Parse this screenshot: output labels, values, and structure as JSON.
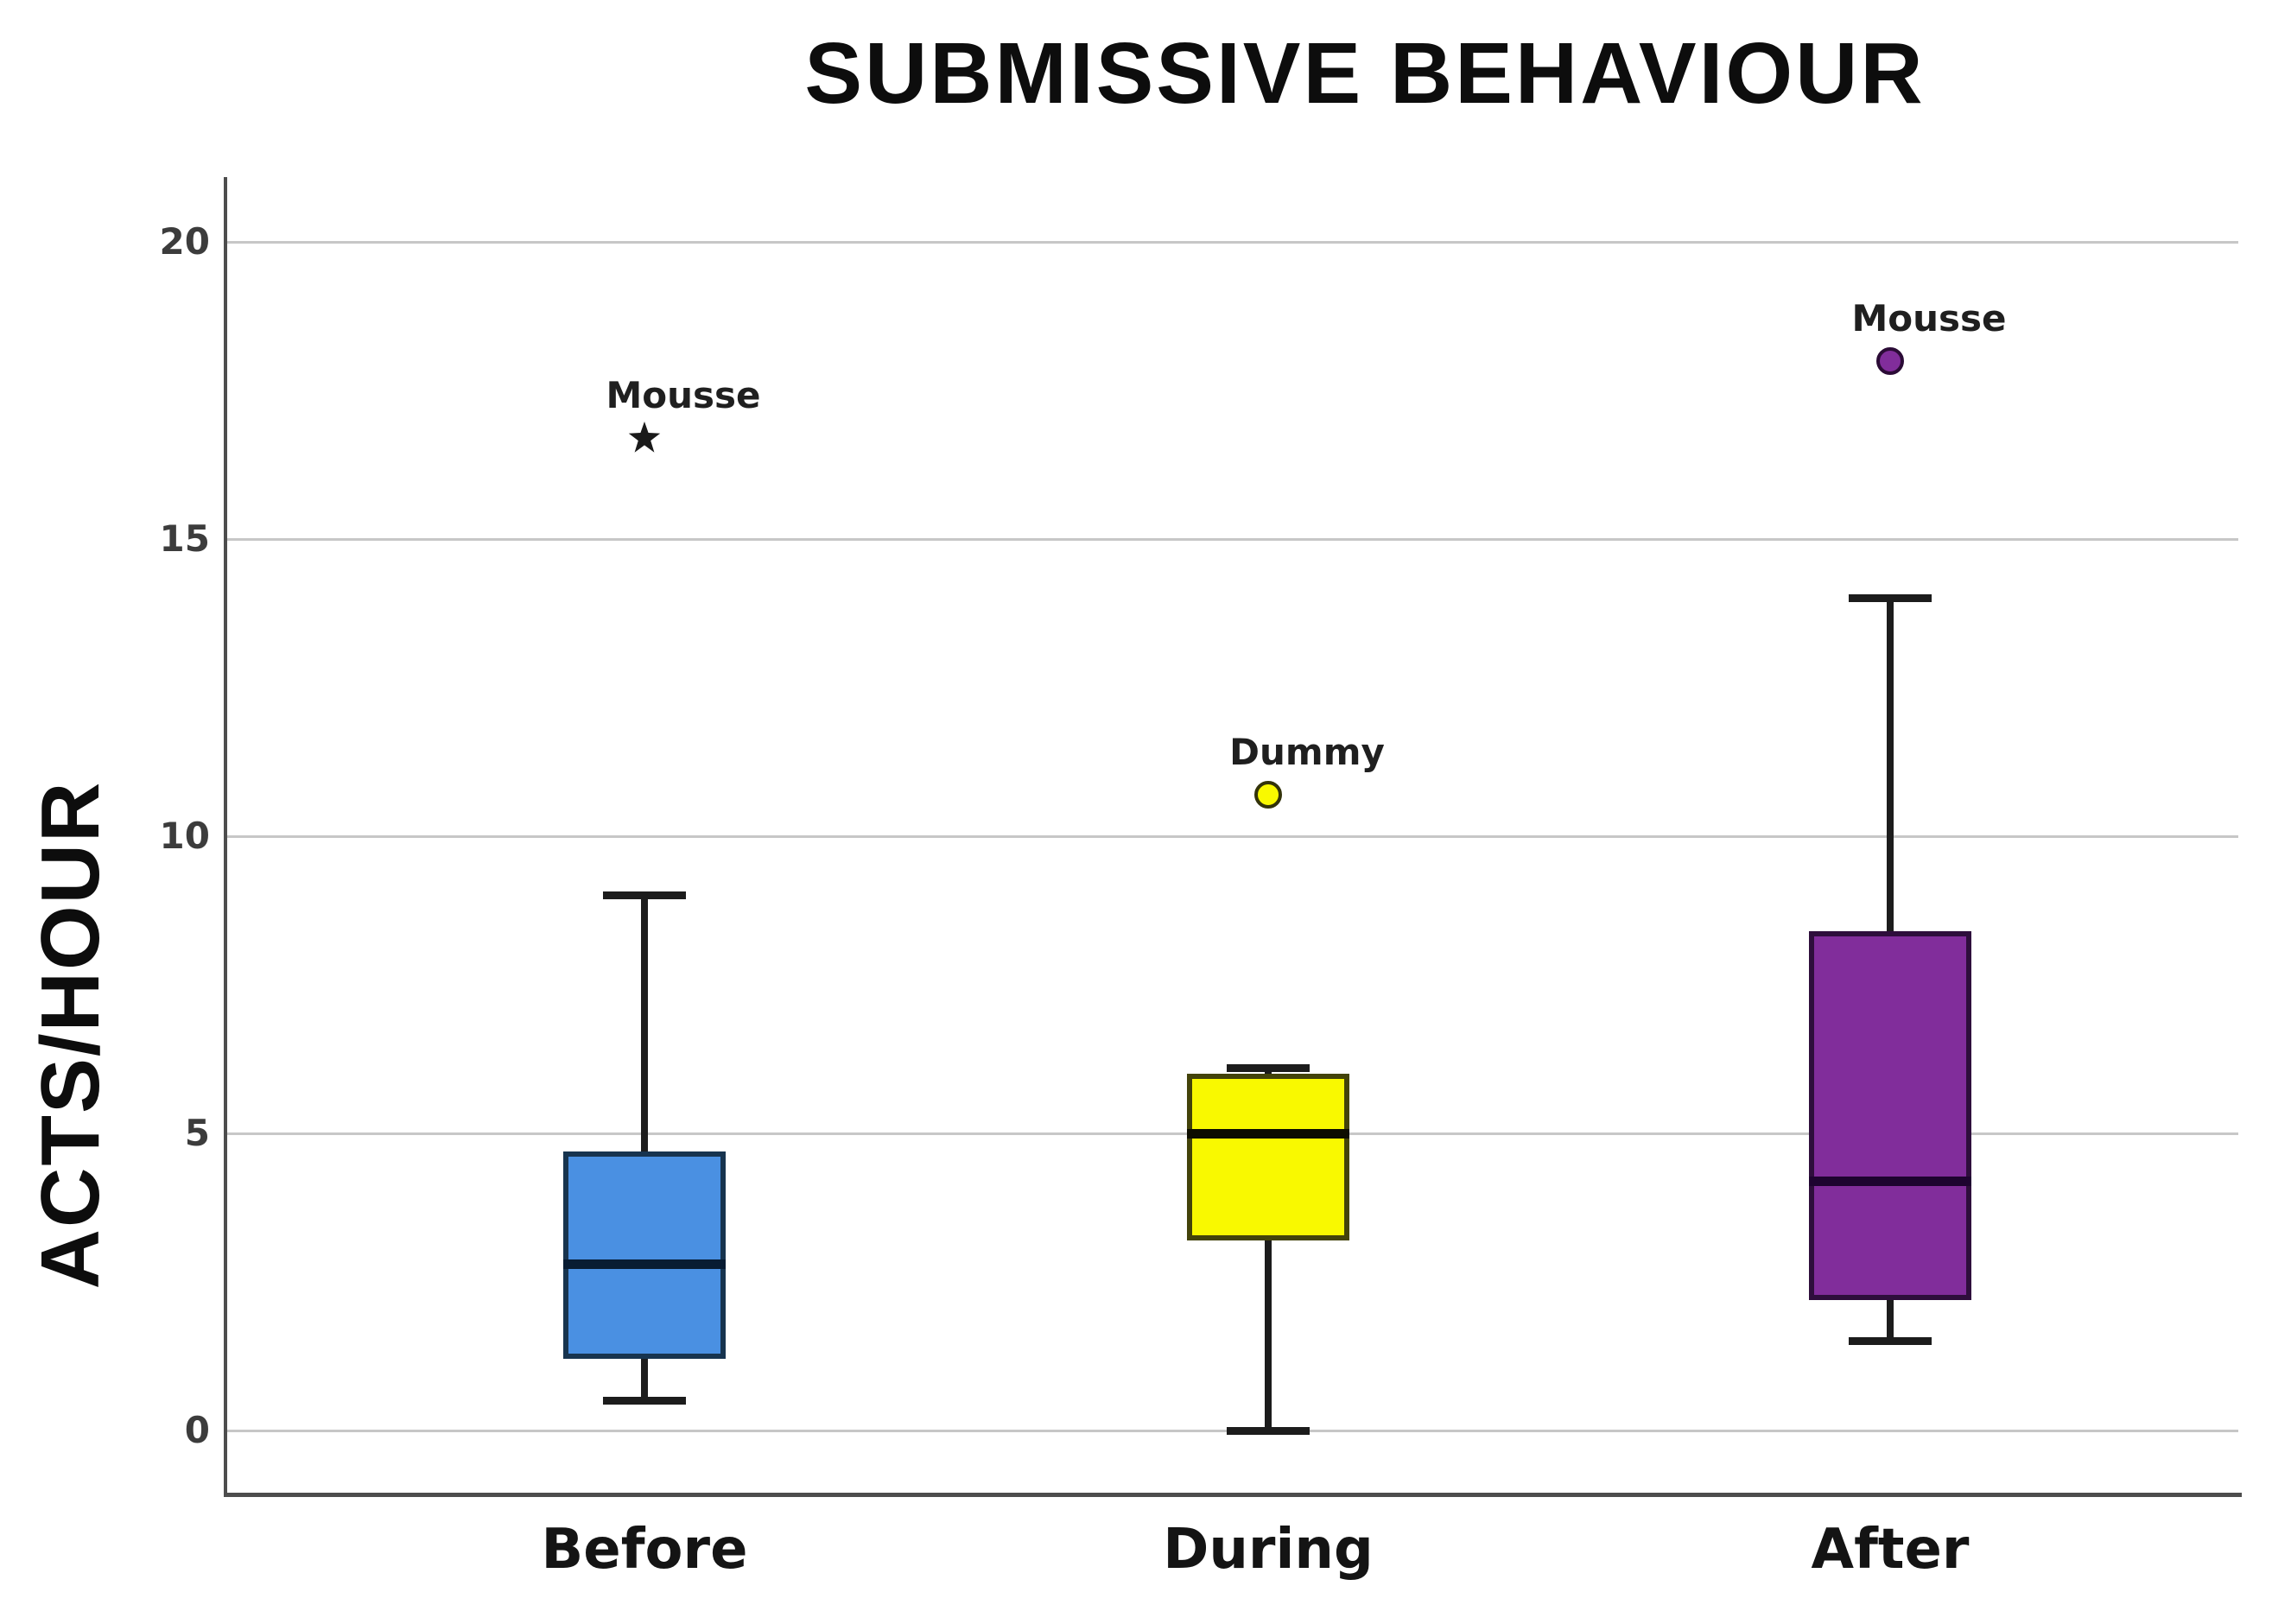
{
  "chart_data": {
    "type": "boxplot",
    "title": "SUBMISSIVE BEHAVIOUR",
    "ylabel": "ACTS/HOUR",
    "xlabel": "",
    "categories": [
      "Before",
      "During",
      "After"
    ],
    "yticks": [
      0,
      5,
      10,
      15,
      20
    ],
    "ylim": [
      -1.1,
      21.0
    ],
    "grid": "horizontal-gridlines",
    "legend": "none",
    "boxes": [
      {
        "category": "Before",
        "whisker_low": 0.5,
        "q1": 1.2,
        "median": 2.8,
        "q3": 4.7,
        "whisker_high": 9.0,
        "fill": "#4A90E2",
        "border": "#17344F",
        "median_color": "#081C33",
        "outliers": [
          {
            "label": "Mousse",
            "value": 16.7,
            "marker": "star",
            "fill": "#1A1A1A",
            "outline": "#1A1A1A"
          }
        ]
      },
      {
        "category": "During",
        "whisker_low": 0.0,
        "q1": 3.2,
        "median": 5.0,
        "q3": 6.0,
        "whisker_high": 6.1,
        "fill": "#F9F900",
        "border": "#43430A",
        "median_color": "#0D0D00",
        "outliers": [
          {
            "label": "Dummy",
            "value": 10.7,
            "marker": "circle",
            "fill": "#F9F900",
            "outline": "#33330A"
          }
        ]
      },
      {
        "category": "After",
        "whisker_low": 1.5,
        "q1": 2.2,
        "median": 4.2,
        "q3": 8.4,
        "whisker_high": 14.0,
        "fill": "#812D9B",
        "border": "#2E0E3C",
        "median_color": "#1E0430",
        "outliers": [
          {
            "label": "Mousse",
            "value": 18.0,
            "marker": "circle",
            "fill": "#812D9B",
            "outline": "#2B0B36"
          }
        ]
      }
    ],
    "styles": {
      "background": "#FFFFFF",
      "grid_color": "#C7C7C7",
      "axis_color": "#4D4D4D",
      "whisker_color": "#1C1C1C",
      "title_color": "#0D0D0D",
      "tick_label_color": "#3C3C3C",
      "category_label_color": "#141414",
      "outlier_label_color": "#1F1F1F"
    }
  }
}
